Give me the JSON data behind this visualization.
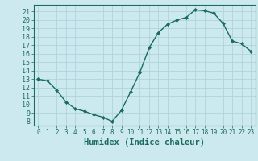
{
  "x": [
    0,
    1,
    2,
    3,
    4,
    5,
    6,
    7,
    8,
    9,
    10,
    11,
    12,
    13,
    14,
    15,
    16,
    17,
    18,
    19,
    20,
    21,
    22,
    23
  ],
  "y": [
    13,
    12.8,
    11.7,
    10.3,
    9.5,
    9.2,
    8.8,
    8.5,
    8.0,
    9.3,
    11.5,
    13.8,
    16.7,
    18.5,
    19.5,
    20.0,
    20.3,
    21.2,
    21.1,
    20.8,
    19.6,
    17.5,
    17.2,
    16.3
  ],
  "line_color": "#1a6b5a",
  "marker": "D",
  "marker_size": 2,
  "line_width": 1.0,
  "xlabel": "Humidex (Indice chaleur)",
  "xlim": [
    -0.5,
    23.5
  ],
  "ylim": [
    7.5,
    21.8
  ],
  "yticks": [
    8,
    9,
    10,
    11,
    12,
    13,
    14,
    15,
    16,
    17,
    18,
    19,
    20,
    21
  ],
  "xticks": [
    0,
    1,
    2,
    3,
    4,
    5,
    6,
    7,
    8,
    9,
    10,
    11,
    12,
    13,
    14,
    15,
    16,
    17,
    18,
    19,
    20,
    21,
    22,
    23
  ],
  "bg_color": "#cce9ef",
  "grid_color": "#b0d4da",
  "tick_color": "#1a6b5a",
  "xlabel_fontsize": 7.5,
  "ytick_fontsize": 6.0,
  "xtick_fontsize": 5.5
}
